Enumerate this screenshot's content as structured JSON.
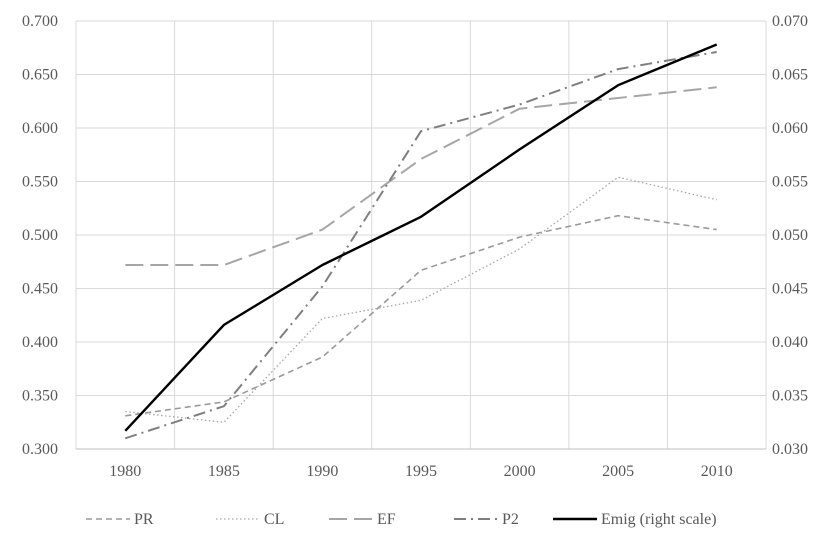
{
  "chart_data": {
    "type": "line",
    "x": [
      1980,
      1985,
      1990,
      1995,
      2000,
      2005,
      2010
    ],
    "x_tick_labels": [
      "1980",
      "1985",
      "1990",
      "1995",
      "2000",
      "2005",
      "2010"
    ],
    "y_left": {
      "range": [
        0.3,
        0.7
      ],
      "tick_labels": [
        "0.300",
        "0.350",
        "0.400",
        "0.450",
        "0.500",
        "0.550",
        "0.600",
        "0.650",
        "0.700"
      ]
    },
    "y_right": {
      "range": [
        0.03,
        0.07
      ],
      "tick_labels": [
        "0.030",
        "0.035",
        "0.040",
        "0.045",
        "0.050",
        "0.055",
        "0.060",
        "0.065",
        "0.070"
      ]
    },
    "grid": true,
    "legend_position": "bottom",
    "series": [
      {
        "name": "PR",
        "axis": "left",
        "style": "dashed",
        "color": "#9a9a9a",
        "values": [
          0.331,
          0.344,
          0.386,
          0.467,
          0.498,
          0.518,
          0.505
        ]
      },
      {
        "name": "CL",
        "axis": "left",
        "style": "dotted",
        "color": "#a6a6a6",
        "values": [
          0.335,
          0.325,
          0.422,
          0.439,
          0.487,
          0.554,
          0.533
        ]
      },
      {
        "name": "EF",
        "axis": "left",
        "style": "long-dash",
        "color": "#a6a6a6",
        "values": [
          0.472,
          0.472,
          0.505,
          0.571,
          0.618,
          0.628,
          0.638
        ]
      },
      {
        "name": "P2",
        "axis": "left",
        "style": "dash-dot",
        "color": "#7f7f7f",
        "values": [
          0.31,
          0.34,
          0.452,
          0.597,
          0.622,
          0.655,
          0.671
        ]
      },
      {
        "name": "Emig (right scale)",
        "axis": "right",
        "style": "solid",
        "color": "#000000",
        "values": [
          0.0317,
          0.0416,
          0.0472,
          0.0517,
          0.058,
          0.064,
          0.0678
        ]
      }
    ]
  }
}
